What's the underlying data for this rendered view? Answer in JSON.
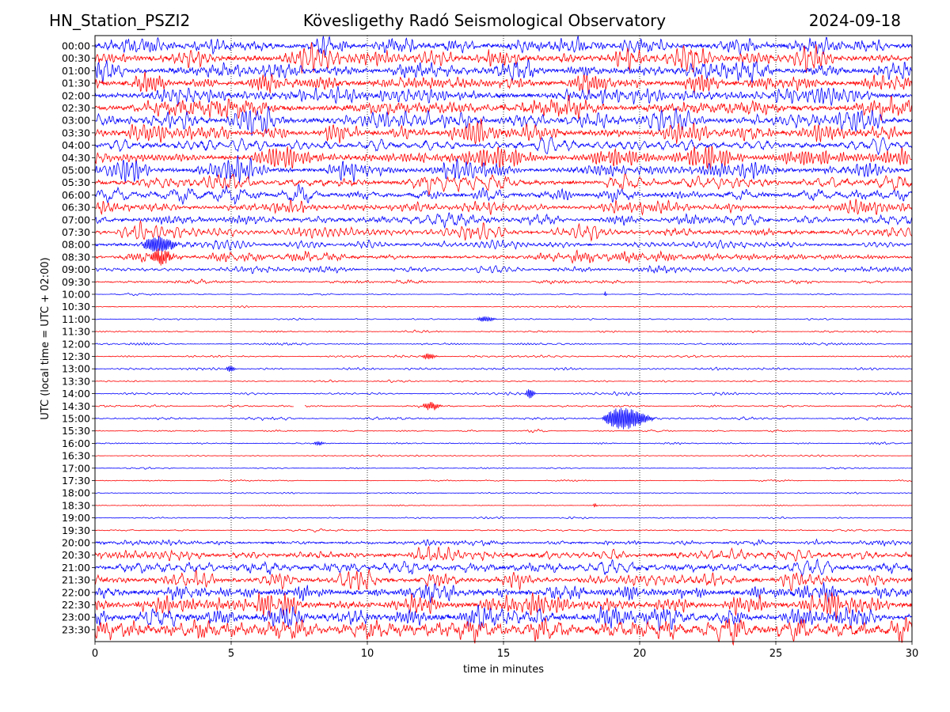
{
  "header": {
    "station": "HN_Station_PSZI2",
    "observatory": "Kövesligethy Radó Seismological Observatory",
    "date": "2024-09-18"
  },
  "chart_data": {
    "type": "line",
    "title": "Kövesligethy Radó Seismological Observatory",
    "xlabel": "time in minutes",
    "ylabel": "UTC (local time = UTC + 02:00)",
    "xlim": [
      0,
      30
    ],
    "xticks": [
      0,
      5,
      10,
      15,
      20,
      25,
      30
    ],
    "grid": "vertical dotted lines at 5, 10, 15, 20, 25 min",
    "colors": {
      "even": "#0000ff",
      "odd": "#ff0000"
    },
    "rows": [
      "00:00",
      "00:30",
      "01:00",
      "01:30",
      "02:00",
      "02:30",
      "03:00",
      "03:30",
      "04:00",
      "04:30",
      "05:00",
      "05:30",
      "06:00",
      "06:30",
      "07:00",
      "07:30",
      "08:00",
      "08:30",
      "09:00",
      "09:30",
      "10:00",
      "10:30",
      "11:00",
      "11:30",
      "12:00",
      "12:30",
      "13:00",
      "13:30",
      "14:00",
      "14:30",
      "15:00",
      "15:30",
      "16:00",
      "16:30",
      "17:00",
      "17:30",
      "18:00",
      "18:30",
      "19:00",
      "19:30",
      "20:00",
      "20:30",
      "21:00",
      "21:30",
      "22:00",
      "22:30",
      "23:00",
      "23:30"
    ],
    "noise_level": [
      0.55,
      0.55,
      0.55,
      0.55,
      0.55,
      0.55,
      0.55,
      0.55,
      0.5,
      0.5,
      0.5,
      0.45,
      0.45,
      0.35,
      0.35,
      0.35,
      0.3,
      0.3,
      0.2,
      0.12,
      0.05,
      0.05,
      0.05,
      0.05,
      0.06,
      0.07,
      0.08,
      0.06,
      0.07,
      0.07,
      0.08,
      0.05,
      0.05,
      0.04,
      0.04,
      0.04,
      0.04,
      0.04,
      0.05,
      0.06,
      0.25,
      0.4,
      0.45,
      0.45,
      0.55,
      0.6,
      0.65,
      0.65
    ],
    "events": [
      {
        "row": "08:00",
        "minute": 1.7,
        "amp": 1.1,
        "dur": 1.5
      },
      {
        "row": "08:30",
        "minute": 2.0,
        "amp": 1.0,
        "dur": 1.0
      },
      {
        "row": "11:00",
        "minute": 14.0,
        "amp": 0.35,
        "dur": 0.8
      },
      {
        "row": "12:30",
        "minute": 12.0,
        "amp": 0.4,
        "dur": 0.6
      },
      {
        "row": "13:00",
        "minute": 4.8,
        "amp": 0.45,
        "dur": 0.4
      },
      {
        "row": "14:00",
        "minute": 15.8,
        "amp": 0.7,
        "dur": 0.4
      },
      {
        "row": "14:30",
        "minute": 12.0,
        "amp": 0.5,
        "dur": 0.8
      },
      {
        "row": "15:00",
        "minute": 18.6,
        "amp": 1.5,
        "dur": 2.0
      },
      {
        "row": "18:30",
        "minute": 18.3,
        "amp": 0.3,
        "dur": 0.15
      },
      {
        "row": "10:00",
        "minute": 18.7,
        "amp": 0.4,
        "dur": 0.1
      },
      {
        "row": "16:00",
        "minute": 8.0,
        "amp": 0.25,
        "dur": 0.5
      }
    ],
    "gaps": [
      {
        "row": "14:30",
        "start": 7.3,
        "end": 7.7
      }
    ]
  }
}
